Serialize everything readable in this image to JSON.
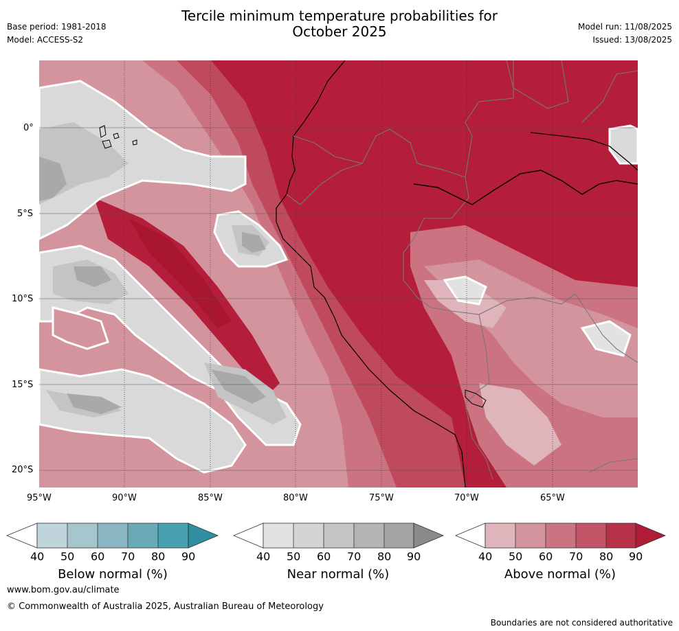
{
  "header": {
    "title_line1": "Tercile minimum temperature probabilities for",
    "title_line2": "October 2025",
    "base_period": "Base period: 1981-2018",
    "model": "Model: ACCESS-S2",
    "model_run": "Model run: 11/08/2025",
    "issued": "Issued: 13/08/2025"
  },
  "map": {
    "lat_labels": [
      "0°",
      "5°S",
      "10°S",
      "15°S",
      "20°S"
    ],
    "lon_labels": [
      "95°W",
      "90°W",
      "85°W",
      "80°W",
      "75°W",
      "70°W",
      "65°W"
    ]
  },
  "colorbars": [
    {
      "label": "Below normal (%)",
      "ticks": [
        "40",
        "50",
        "60",
        "70",
        "80",
        "90"
      ],
      "colors": [
        "#ffffff",
        "#bfd5db",
        "#a6c6cd",
        "#89b6c0",
        "#6aaab6",
        "#48a1b0",
        "#2f8fa0"
      ]
    },
    {
      "label": "Near normal (%)",
      "ticks": [
        "40",
        "50",
        "60",
        "70",
        "80",
        "90"
      ],
      "colors": [
        "#ffffff",
        "#e2e2e2",
        "#d4d4d4",
        "#c4c4c4",
        "#b4b4b4",
        "#a3a3a3",
        "#8a8a8a"
      ]
    },
    {
      "label": "Above normal (%)",
      "ticks": [
        "40",
        "50",
        "60",
        "70",
        "80",
        "90"
      ],
      "colors": [
        "#ffffff",
        "#e0b4bb",
        "#d4949e",
        "#c97480",
        "#c15466",
        "#b73249",
        "#b01c38"
      ]
    }
  ],
  "footer": {
    "website": "www.bom.gov.au/climate",
    "copyright": "© Commonwealth of Australia 2025, Australian Bureau of Meteorology",
    "disclaimer": "Boundaries are not considered authoritative"
  }
}
